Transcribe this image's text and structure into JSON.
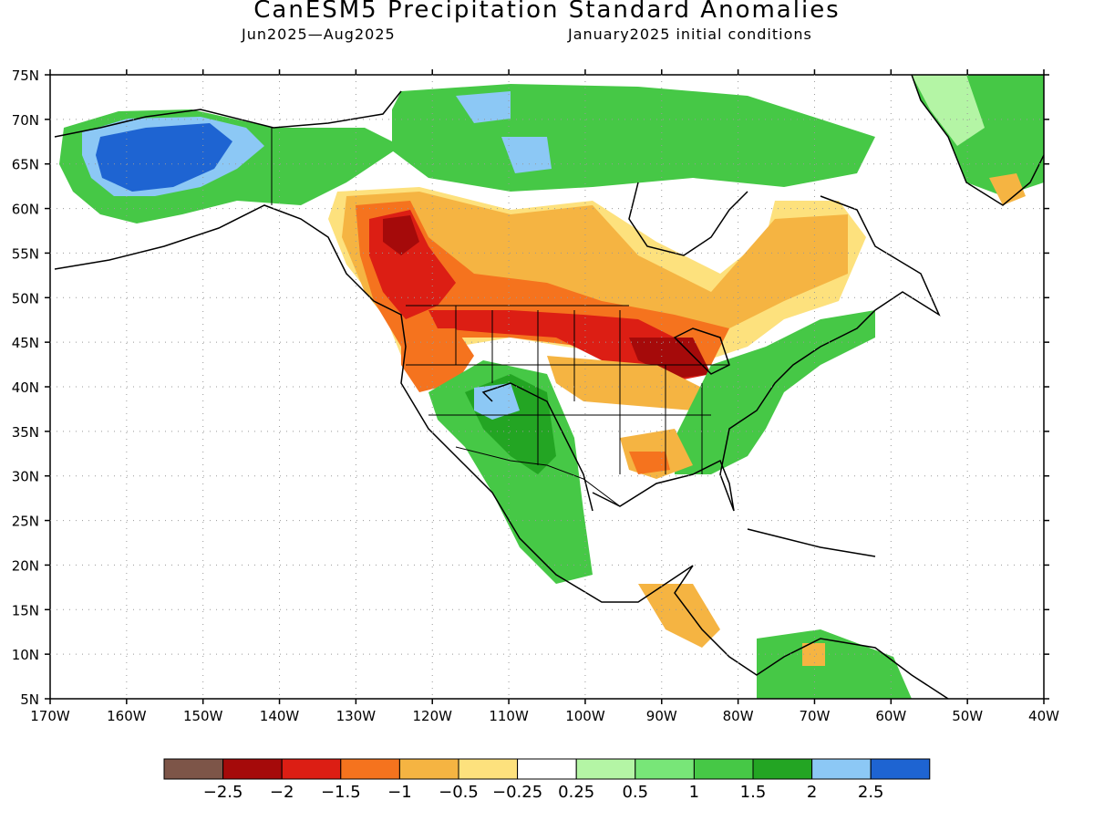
{
  "title": "CanESM5 Precipitation Standard Anomalies",
  "subtitle_left": "Jun2025—Aug2025",
  "subtitle_right": "January2025 initial conditions",
  "map": {
    "lat_labels": [
      "75N",
      "70N",
      "65N",
      "60N",
      "55N",
      "50N",
      "45N",
      "40N",
      "35N",
      "30N",
      "25N",
      "20N",
      "15N",
      "10N",
      "5N"
    ],
    "lat_values": [
      75,
      70,
      65,
      60,
      55,
      50,
      45,
      40,
      35,
      30,
      25,
      20,
      15,
      10,
      5
    ],
    "lon_labels": [
      "170W",
      "160W",
      "150W",
      "140W",
      "130W",
      "120W",
      "110W",
      "100W",
      "90W",
      "80W",
      "70W",
      "60W",
      "50W",
      "40W"
    ],
    "lon_values": [
      -170,
      -160,
      -150,
      -140,
      -130,
      -120,
      -110,
      -100,
      -90,
      -80,
      -70,
      -60,
      -50,
      -40
    ]
  },
  "colorbar": {
    "colors": [
      "#7d5548",
      "#a50a0a",
      "#dc1e14",
      "#f5731e",
      "#f5b442",
      "#fde17d",
      "#ffffff",
      "#b4f5a5",
      "#78e678",
      "#46c846",
      "#23a523",
      "#8cc8f5",
      "#1e64d2"
    ],
    "labels": [
      "−2.5",
      "−2",
      "−1.5",
      "−1",
      "−0.5",
      "−0.25",
      "0.25",
      "0.5",
      "1",
      "1.5",
      "2",
      "2.5"
    ]
  },
  "anomaly_regions": [
    {
      "name": "alaska-wet",
      "color": "#8cc8f5"
    },
    {
      "name": "alaska-core-wet",
      "color": "#1e64d2"
    },
    {
      "name": "canada-dry",
      "color": "#f5b442"
    },
    {
      "name": "bc-dry-core",
      "color": "#dc1e14"
    },
    {
      "name": "northern-plains-dry",
      "color": "#f5731e"
    },
    {
      "name": "southwest-wet",
      "color": "#23a523"
    },
    {
      "name": "east-wet",
      "color": "#46c846"
    }
  ]
}
